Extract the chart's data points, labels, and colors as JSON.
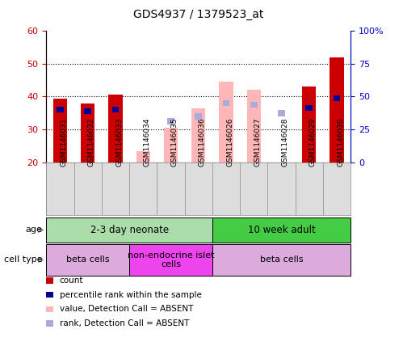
{
  "title": "GDS4937 / 1379523_at",
  "samples": [
    "GSM1146031",
    "GSM1146032",
    "GSM1146033",
    "GSM1146034",
    "GSM1146035",
    "GSM1146036",
    "GSM1146026",
    "GSM1146027",
    "GSM1146028",
    "GSM1146029",
    "GSM1146030"
  ],
  "left_ylim": [
    20,
    60
  ],
  "right_ylim": [
    0,
    100
  ],
  "left_yticks": [
    20,
    30,
    40,
    50,
    60
  ],
  "right_yticks": [
    0,
    25,
    50,
    75,
    100
  ],
  "right_yticklabels": [
    "0",
    "25",
    "50",
    "75",
    "100%"
  ],
  "count_values": [
    39.5,
    38.0,
    40.5,
    null,
    null,
    null,
    null,
    null,
    null,
    43.0,
    52.0
  ],
  "percentile_values": [
    36.0,
    35.5,
    36.0,
    null,
    null,
    null,
    null,
    null,
    null,
    36.5,
    39.5
  ],
  "absent_value_values": [
    null,
    null,
    null,
    23.5,
    30.5,
    36.5,
    44.5,
    42.0,
    null,
    null,
    null
  ],
  "absent_rank_values": [
    null,
    null,
    null,
    null,
    32.5,
    34.0,
    38.0,
    37.5,
    35.0,
    null,
    null
  ],
  "age_groups": [
    {
      "label": "2-3 day neonate",
      "start": 0,
      "end": 6,
      "color": "#aaddaa"
    },
    {
      "label": "10 week adult",
      "start": 6,
      "end": 11,
      "color": "#44cc44"
    }
  ],
  "cell_type_groups": [
    {
      "label": "beta cells",
      "start": 0,
      "end": 3,
      "color": "#ddaadd"
    },
    {
      "label": "non-endocrine islet\ncells",
      "start": 3,
      "end": 6,
      "color": "#ee44ee"
    },
    {
      "label": "beta cells",
      "start": 6,
      "end": 11,
      "color": "#ddaadd"
    }
  ],
  "count_color": "#cc0000",
  "percentile_color": "#000099",
  "absent_value_color": "#ffb6b6",
  "absent_rank_color": "#aaaadd",
  "tick_color_left": "#cc0000",
  "tick_color_right": "#0000cc",
  "bar_width": 0.5,
  "small_bar_width": 0.25,
  "legend_items": [
    [
      "#cc0000",
      "count"
    ],
    [
      "#000099",
      "percentile rank within the sample"
    ],
    [
      "#ffb6b6",
      "value, Detection Call = ABSENT"
    ],
    [
      "#aaaadd",
      "rank, Detection Call = ABSENT"
    ]
  ]
}
